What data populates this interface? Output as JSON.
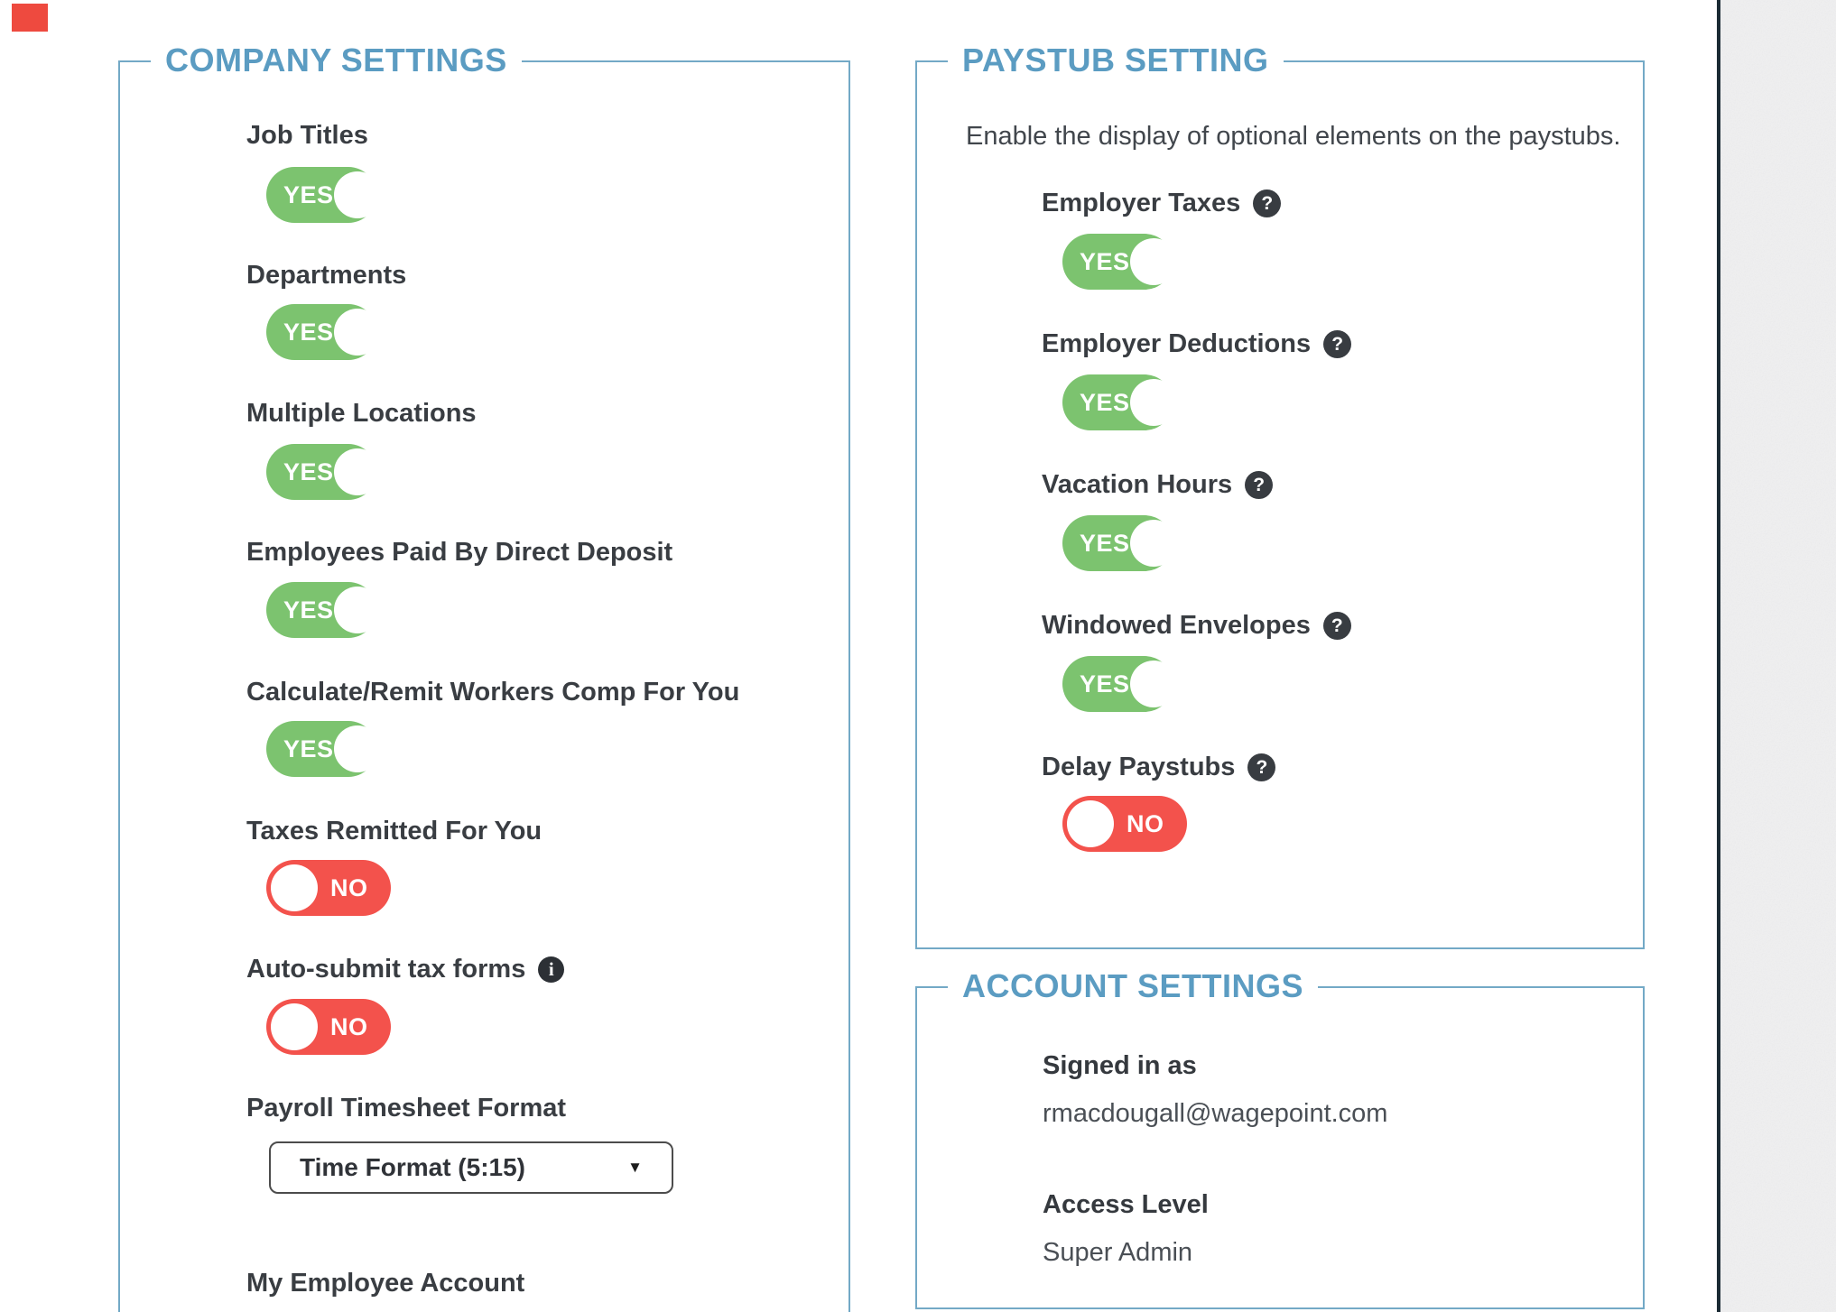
{
  "company_settings": {
    "title": "COMPANY SETTINGS",
    "items": [
      {
        "label": "Job Titles",
        "value": "YES"
      },
      {
        "label": "Departments",
        "value": "YES"
      },
      {
        "label": "Multiple Locations",
        "value": "YES"
      },
      {
        "label": "Employees Paid By Direct Deposit",
        "value": "YES"
      },
      {
        "label": "Calculate/Remit Workers Comp For You",
        "value": "YES"
      },
      {
        "label": "Taxes Remitted For You",
        "value": "NO"
      },
      {
        "label": "Auto-submit tax forms",
        "value": "NO"
      }
    ],
    "timesheet_label": "Payroll Timesheet Format",
    "timesheet_value": "Time Format (5:15)",
    "my_employee_account_label": "My Employee Account"
  },
  "paystub_setting": {
    "title": "PAYSTUB SETTING",
    "description": "Enable the display of optional elements on the paystubs.",
    "items": [
      {
        "label": "Employer Taxes",
        "value": "YES"
      },
      {
        "label": "Employer Deductions",
        "value": "YES"
      },
      {
        "label": "Vacation Hours",
        "value": "YES"
      },
      {
        "label": "Windowed Envelopes",
        "value": "YES"
      },
      {
        "label": "Delay Paystubs",
        "value": "NO"
      }
    ]
  },
  "account_settings": {
    "title": "ACCOUNT SETTINGS",
    "signed_in_label": "Signed in as",
    "signed_in_value": "rmacdougall@wagepoint.com",
    "access_level_label": "Access Level",
    "access_level_value": "Super Admin"
  },
  "icons": {
    "help": "?",
    "info": "i",
    "caret": "▼"
  },
  "colors": {
    "accent_blue": "#5b9cc2",
    "border_blue": "#73a9c6",
    "toggle_green": "#7cc36f",
    "toggle_red": "#f3524c",
    "divider_dark": "#1b2b35",
    "texture_gray": "#f0f0f1"
  }
}
